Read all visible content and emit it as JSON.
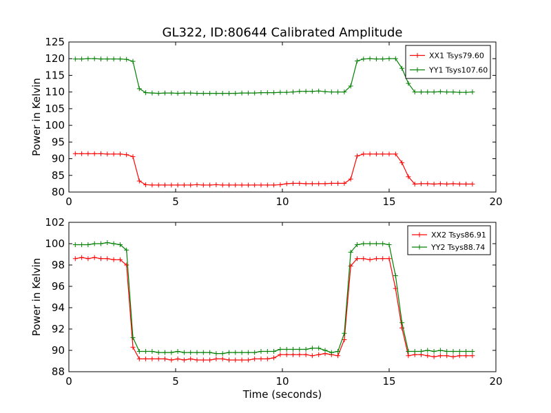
{
  "figure": {
    "title": "GL322, ID:80644 Calibrated Amplitude",
    "xlabel": "Time (seconds)"
  },
  "chart_data": [
    {
      "type": "line",
      "title": "GL322, ID:80644 Calibrated Amplitude",
      "xlabel": "",
      "ylabel": "Power in Kelvin",
      "xlim": [
        0,
        20
      ],
      "ylim": [
        80,
        125
      ],
      "xticks": [
        0,
        5,
        10,
        15,
        20
      ],
      "yticks": [
        80,
        85,
        90,
        95,
        100,
        105,
        110,
        115,
        120,
        125
      ],
      "grid": false,
      "legend_position": "top-right",
      "x": [
        0.3,
        0.6,
        0.9,
        1.2,
        1.5,
        1.8,
        2.1,
        2.4,
        2.7,
        3.0,
        3.3,
        3.6,
        3.9,
        4.2,
        4.5,
        4.8,
        5.1,
        5.4,
        5.7,
        6.0,
        6.3,
        6.6,
        6.9,
        7.2,
        7.5,
        7.8,
        8.1,
        8.4,
        8.7,
        9.0,
        9.3,
        9.6,
        9.9,
        10.2,
        10.5,
        10.8,
        11.1,
        11.4,
        11.7,
        12.0,
        12.3,
        12.6,
        12.9,
        13.2,
        13.5,
        13.8,
        14.1,
        14.4,
        14.7,
        15.0,
        15.3,
        15.6,
        15.9,
        16.2,
        16.5,
        16.8,
        17.1,
        17.4,
        17.7,
        18.0,
        18.3,
        18.6,
        18.9
      ],
      "series": [
        {
          "name": "XX1 Tsys79.60",
          "color": "#ff0000",
          "values": [
            91.5,
            91.5,
            91.5,
            91.5,
            91.5,
            91.4,
            91.4,
            91.4,
            91.2,
            90.6,
            83.3,
            82.2,
            82.1,
            82.1,
            82.1,
            82.1,
            82.1,
            82.1,
            82.1,
            82.2,
            82.1,
            82.1,
            82.2,
            82.1,
            82.1,
            82.1,
            82.1,
            82.1,
            82.1,
            82.1,
            82.1,
            82.1,
            82.2,
            82.5,
            82.6,
            82.6,
            82.5,
            82.5,
            82.5,
            82.5,
            82.6,
            82.6,
            82.6,
            83.9,
            90.8,
            91.4,
            91.4,
            91.4,
            91.4,
            91.4,
            91.4,
            88.8,
            84.6,
            82.4,
            82.5,
            82.5,
            82.4,
            82.5,
            82.4,
            82.5,
            82.4,
            82.4,
            82.4
          ]
        },
        {
          "name": "YY1 Tsys107.60",
          "color": "#008000",
          "values": [
            119.9,
            119.9,
            120.0,
            120.0,
            119.9,
            119.9,
            119.9,
            119.9,
            119.8,
            119.2,
            111.0,
            109.8,
            109.7,
            109.6,
            109.7,
            109.7,
            109.6,
            109.7,
            109.7,
            109.6,
            109.6,
            109.6,
            109.6,
            109.6,
            109.6,
            109.6,
            109.7,
            109.7,
            109.7,
            109.8,
            109.8,
            109.8,
            109.9,
            109.9,
            110.0,
            110.2,
            110.2,
            110.2,
            110.3,
            110.1,
            110.0,
            110.0,
            110.0,
            111.8,
            119.3,
            119.9,
            120.0,
            119.9,
            119.9,
            120.0,
            120.0,
            117.1,
            112.6,
            110.0,
            110.0,
            110.0,
            110.0,
            110.1,
            110.0,
            110.0,
            109.9,
            109.9,
            110.0
          ]
        }
      ]
    },
    {
      "type": "line",
      "title": "",
      "xlabel": "Time (seconds)",
      "ylabel": "Power in Kelvin",
      "xlim": [
        0,
        20
      ],
      "ylim": [
        88,
        102
      ],
      "xticks": [
        0,
        5,
        10,
        15,
        20
      ],
      "yticks": [
        88,
        90,
        92,
        94,
        96,
        98,
        100,
        102
      ],
      "grid": false,
      "legend_position": "top-right",
      "x": [
        0.3,
        0.6,
        0.9,
        1.2,
        1.5,
        1.8,
        2.1,
        2.4,
        2.7,
        3.0,
        3.3,
        3.6,
        3.9,
        4.2,
        4.5,
        4.8,
        5.1,
        5.4,
        5.7,
        6.0,
        6.3,
        6.6,
        6.9,
        7.2,
        7.5,
        7.8,
        8.1,
        8.4,
        8.7,
        9.0,
        9.3,
        9.6,
        9.9,
        10.2,
        10.5,
        10.8,
        11.1,
        11.4,
        11.7,
        12.0,
        12.3,
        12.6,
        12.9,
        13.2,
        13.5,
        13.8,
        14.1,
        14.4,
        14.7,
        15.0,
        15.3,
        15.6,
        15.9,
        16.2,
        16.5,
        16.8,
        17.1,
        17.4,
        17.7,
        18.0,
        18.3,
        18.6,
        18.9
      ],
      "series": [
        {
          "name": "XX2 Tsys86.91",
          "color": "#ff0000",
          "values": [
            98.6,
            98.7,
            98.6,
            98.7,
            98.6,
            98.6,
            98.5,
            98.5,
            98.0,
            90.3,
            89.2,
            89.2,
            89.2,
            89.2,
            89.2,
            89.1,
            89.2,
            89.1,
            89.2,
            89.1,
            89.1,
            89.1,
            89.2,
            89.2,
            89.1,
            89.1,
            89.1,
            89.1,
            89.2,
            89.2,
            89.2,
            89.3,
            89.6,
            89.6,
            89.6,
            89.6,
            89.6,
            89.5,
            89.6,
            89.7,
            89.6,
            89.5,
            91.0,
            97.9,
            98.6,
            98.6,
            98.5,
            98.6,
            98.6,
            98.6,
            95.8,
            92.1,
            89.5,
            89.6,
            89.6,
            89.5,
            89.4,
            89.5,
            89.5,
            89.4,
            89.5,
            89.5,
            89.5
          ]
        },
        {
          "name": "YY2 Tsys88.74",
          "color": "#008000",
          "values": [
            99.9,
            99.9,
            99.9,
            100.0,
            100.0,
            100.1,
            100.0,
            99.9,
            99.4,
            91.2,
            89.9,
            89.9,
            89.9,
            89.8,
            89.8,
            89.8,
            89.9,
            89.8,
            89.8,
            89.8,
            89.8,
            89.8,
            89.7,
            89.7,
            89.8,
            89.8,
            89.8,
            89.8,
            89.8,
            89.9,
            89.9,
            89.9,
            90.1,
            90.1,
            90.1,
            90.1,
            90.1,
            90.2,
            90.2,
            90.0,
            89.8,
            89.9,
            91.6,
            99.2,
            99.9,
            100.0,
            100.0,
            100.0,
            100.0,
            99.9,
            97.0,
            92.6,
            89.9,
            89.9,
            89.9,
            90.0,
            89.9,
            90.0,
            89.9,
            89.9,
            89.9,
            89.9,
            89.9
          ]
        }
      ]
    }
  ]
}
